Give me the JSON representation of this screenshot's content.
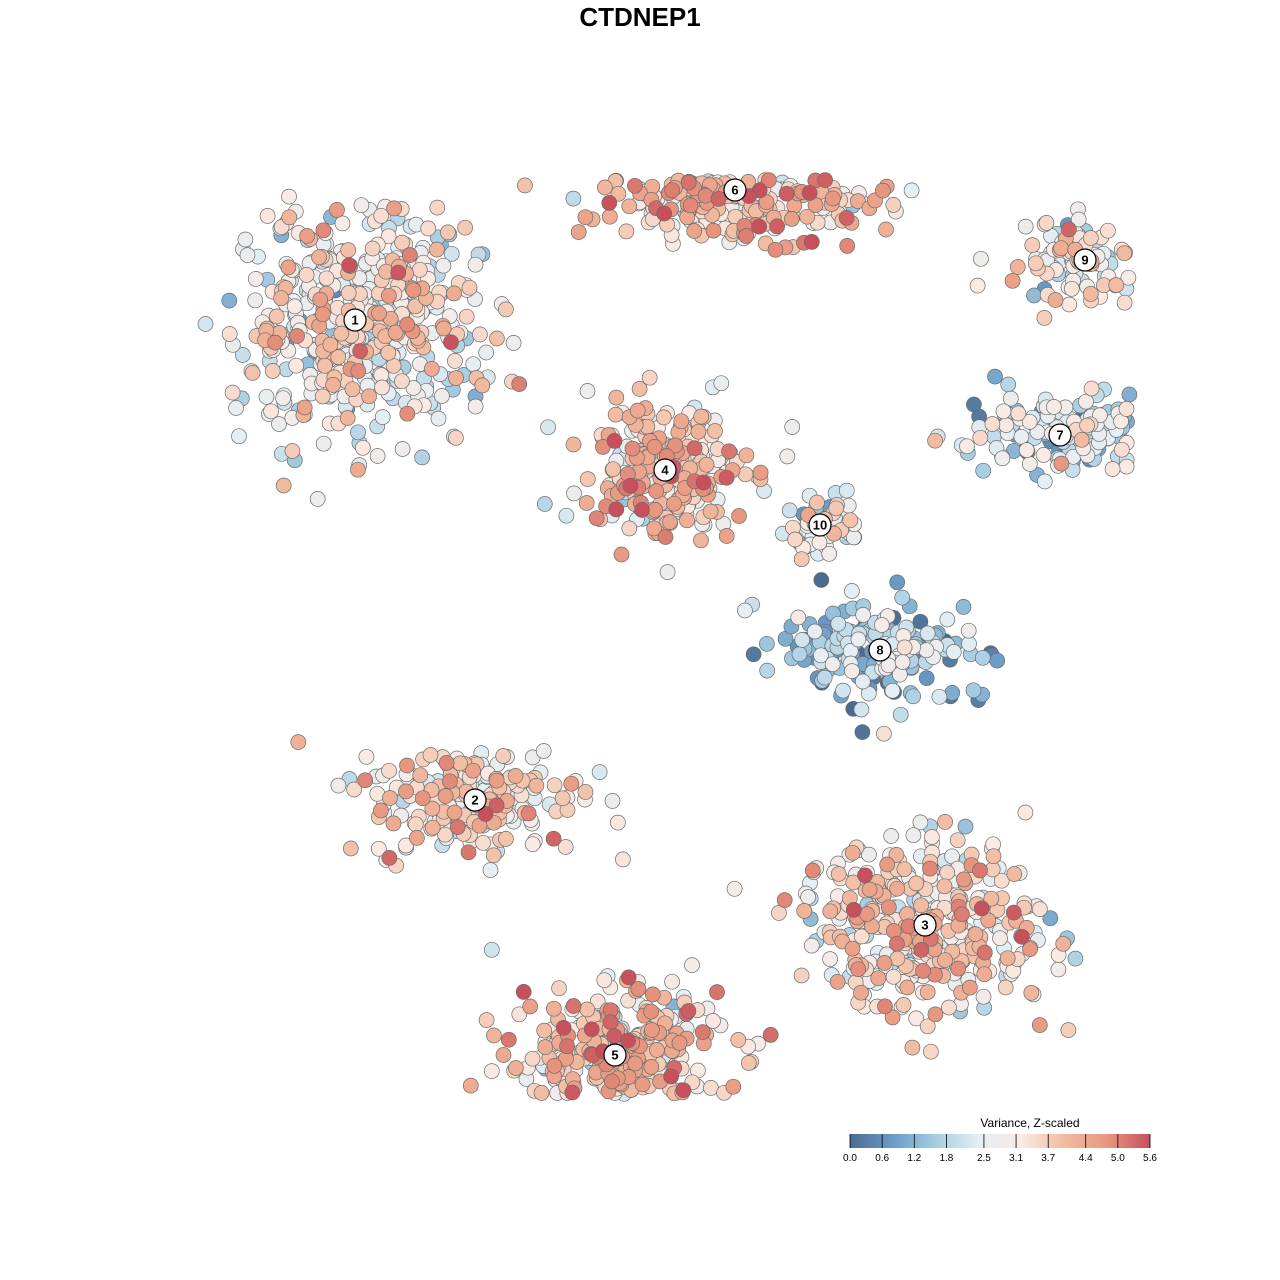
{
  "chart_data": {
    "type": "scatter",
    "title": "CTDNEP1",
    "xlabel": "",
    "ylabel": "",
    "grid": false,
    "legend": {
      "title": "Variance, Z-scaled",
      "placement": "bottom-right",
      "ticks": [
        "0.0",
        "0.6",
        "1.2",
        "1.8",
        "2.5",
        "3.1",
        "3.7",
        "4.4",
        "5.0",
        "5.6"
      ],
      "range": [
        0.0,
        5.6
      ],
      "colors": [
        "#4a6b8f",
        "#6a9cc7",
        "#a6cde2",
        "#e3eef4",
        "#faeae3",
        "#f2bba0",
        "#e8977f",
        "#c8505c"
      ]
    },
    "clusters": [
      {
        "label": "1",
        "x": -6.2,
        "y": 6.4,
        "mean_value": 2.9
      },
      {
        "label": "2",
        "x": -3.8,
        "y": -3.2,
        "mean_value": 3.4
      },
      {
        "label": "3",
        "x": 5.2,
        "y": -5.7,
        "mean_value": 3.3
      },
      {
        "label": "4",
        "x": 0.0,
        "y": 3.4,
        "mean_value": 3.6
      },
      {
        "label": "5",
        "x": -1.0,
        "y": -8.3,
        "mean_value": 3.7
      },
      {
        "label": "6",
        "x": 1.4,
        "y": 9.0,
        "mean_value": 3.9
      },
      {
        "label": "7",
        "x": 7.9,
        "y": 4.1,
        "mean_value": 2.2
      },
      {
        "label": "8",
        "x": 4.3,
        "y": -0.2,
        "mean_value": 1.5
      },
      {
        "label": "9",
        "x": 8.4,
        "y": 7.6,
        "mean_value": 2.9
      },
      {
        "label": "10",
        "x": 3.1,
        "y": 2.3,
        "mean_value": 2.6
      }
    ]
  }
}
